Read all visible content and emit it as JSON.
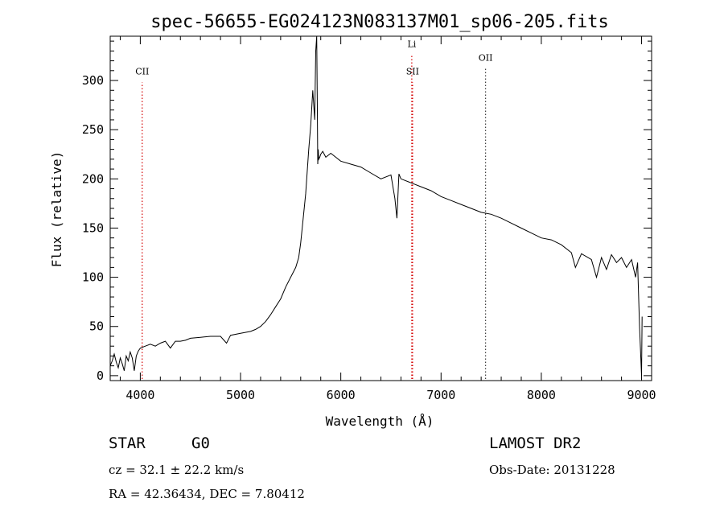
{
  "chart_data": {
    "type": "line",
    "title": "spec-56655-EG024123N083137M01_sp06-205.fits",
    "xlabel": "Wavelength (Å)",
    "ylabel": "Flux (relative)",
    "xlim": [
      3700,
      9100
    ],
    "ylim": [
      -5,
      345
    ],
    "x_ticks": [
      4000,
      5000,
      6000,
      7000,
      8000,
      9000
    ],
    "y_ticks": [
      0,
      50,
      100,
      150,
      200,
      250,
      300
    ],
    "grid": false,
    "series": [
      {
        "x": [
          3700,
          3720,
          3740,
          3760,
          3780,
          3800,
          3820,
          3840,
          3860,
          3880,
          3900,
          3920,
          3940,
          3960,
          3980,
          4000,
          4050,
          4100,
          4150,
          4200,
          4250,
          4300,
          4350,
          4400,
          4450,
          4500,
          4600,
          4700,
          4800,
          4860,
          4900,
          5000,
          5100,
          5150,
          5200,
          5250,
          5300,
          5350,
          5400,
          5450,
          5500,
          5550,
          5580,
          5600,
          5620,
          5650,
          5680,
          5700,
          5720,
          5740,
          5750,
          5760,
          5765,
          5770,
          5775,
          5780,
          5790,
          5800,
          5820,
          5850,
          5900,
          5950,
          6000,
          6100,
          6200,
          6300,
          6400,
          6500,
          6540,
          6560,
          6580,
          6600,
          6700,
          6800,
          6900,
          7000,
          7100,
          7200,
          7300,
          7400,
          7500,
          7600,
          7700,
          7800,
          7900,
          8000,
          8100,
          8200,
          8300,
          8340,
          8400,
          8500,
          8550,
          8600,
          8650,
          8700,
          8750,
          8800,
          8850,
          8900,
          8940,
          8960,
          8980,
          9000,
          9005
        ],
        "y": [
          10,
          15,
          22,
          14,
          8,
          18,
          12,
          5,
          20,
          15,
          24,
          18,
          5,
          20,
          25,
          28,
          30,
          32,
          30,
          33,
          35,
          28,
          35,
          35,
          36,
          38,
          39,
          40,
          40,
          33,
          41,
          43,
          45,
          47,
          50,
          55,
          62,
          70,
          78,
          90,
          100,
          110,
          120,
          135,
          155,
          185,
          230,
          255,
          290,
          260,
          330,
          345,
          280,
          215,
          230,
          220,
          222,
          225,
          228,
          222,
          226,
          222,
          218,
          215,
          212,
          206,
          200,
          204,
          180,
          160,
          205,
          200,
          196,
          192,
          188,
          182,
          178,
          174,
          170,
          166,
          164,
          160,
          155,
          150,
          145,
          140,
          138,
          133,
          125,
          110,
          124,
          118,
          100,
          120,
          108,
          123,
          115,
          120,
          110,
          118,
          100,
          115,
          50,
          0,
          60
        ]
      }
    ],
    "reference_lines": [
      {
        "x": 4019,
        "label": "CII",
        "color": "#d40000",
        "label_y": 306
      },
      {
        "x": 6708,
        "label": "Li",
        "color": "#d40000",
        "label_y": 334
      },
      {
        "x": 6716,
        "label": "SII",
        "color": "#d40000",
        "label_y": 306
      },
      {
        "x": 7444,
        "label": "OII",
        "color": "#404040",
        "label_y": 320
      }
    ]
  },
  "info": {
    "class": "STAR",
    "subclass": "G0",
    "survey": "LAMOST DR2",
    "cz": "cz = 32.1 ± 22.2 km/s",
    "obs_date": "Obs-Date: 20131228",
    "radec": "RA =  42.36434, DEC =   7.80412"
  }
}
